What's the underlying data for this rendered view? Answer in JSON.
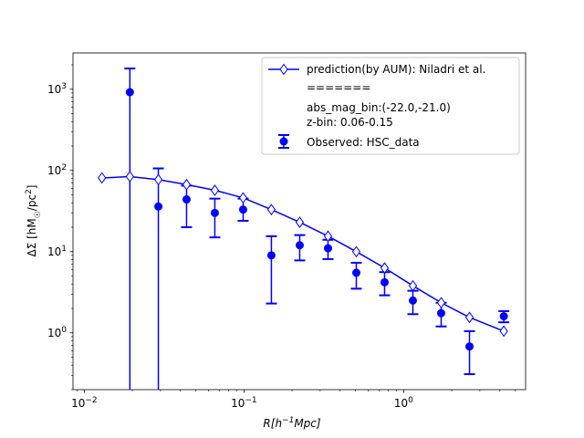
{
  "chart_data": {
    "type": "scatter",
    "xscale": "log",
    "yscale": "log",
    "xlim": [
      0.0085,
      5.8
    ],
    "ylim": [
      0.2,
      2800
    ],
    "xlabel": "R[h^-1 Mpc]",
    "ylabel": "ΔΣ [hM☉/pc²]",
    "xticks": [
      {
        "value": 0.01,
        "base": "10",
        "exp": "−2"
      },
      {
        "value": 0.1,
        "base": "10",
        "exp": "−1"
      },
      {
        "value": 1,
        "base": "10",
        "exp": "0"
      }
    ],
    "yticks": [
      {
        "value": 1,
        "base": "10",
        "exp": "0"
      },
      {
        "value": 10,
        "base": "10",
        "exp": "1"
      },
      {
        "value": 100,
        "base": "10",
        "exp": "2"
      },
      {
        "value": 1000,
        "base": "10",
        "exp": "3"
      }
    ],
    "grid": false,
    "legend_position": "top-right",
    "color": "#0000ff",
    "series": [
      {
        "name": "prediction(by AUM): Niladri et al.",
        "kind": "line-diamond",
        "x": [
          0.0129,
          0.0193,
          0.0291,
          0.0437,
          0.0657,
          0.0988,
          0.1485,
          0.2234,
          0.3359,
          0.5051,
          0.7596,
          1.142,
          1.717,
          2.583,
          4.237
        ],
        "y": [
          81,
          84,
          77,
          67,
          57,
          46,
          33,
          23,
          15.5,
          10,
          6.3,
          3.8,
          2.35,
          1.55,
          1.05
        ]
      },
      {
        "name": "Observed: HSC_data",
        "kind": "errorbar",
        "x": [
          0.0193,
          0.0291,
          0.0437,
          0.0657,
          0.0988,
          0.1485,
          0.2234,
          0.3359,
          0.5051,
          0.7596,
          1.142,
          1.717,
          2.583,
          4.237
        ],
        "y": [
          920,
          36,
          44,
          30,
          33,
          9,
          12,
          11,
          5.5,
          4.2,
          2.5,
          1.75,
          0.68,
          1.6
        ],
        "yerr_low": [
          0.1,
          0.1,
          20,
          15,
          24,
          2.3,
          7.8,
          8.1,
          3.5,
          2.9,
          1.7,
          1.2,
          0.31,
          1.35
        ],
        "yerr_high": [
          1800,
          106,
          65,
          45,
          45,
          15.5,
          16,
          14,
          7.3,
          5.6,
          3.3,
          2.35,
          1.05,
          1.85
        ]
      }
    ],
    "legend_entries": [
      {
        "text": "prediction(by AUM): Niladri et al.",
        "marker": "line-diamond"
      },
      {
        "text": "=======",
        "marker": "none"
      },
      {
        "text": "abs_mag_bin:(-22.0,-21.0)",
        "marker": "none"
      },
      {
        "text": "z-bin: 0.06-0.15",
        "marker": "none"
      },
      {
        "text": "Observed: HSC_data",
        "marker": "errorbar"
      }
    ]
  }
}
